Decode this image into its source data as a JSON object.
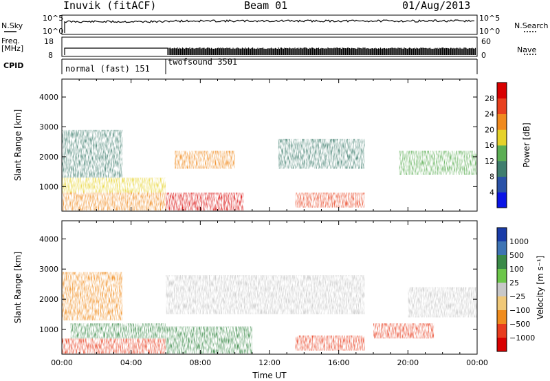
{
  "header": {
    "station": "Inuvik (fitACF)",
    "beam": "Beam 01",
    "date": "01/Aug/2013"
  },
  "top_panels": {
    "nsky": {
      "label": "N.Sky",
      "axis_ticks": [
        "10^5",
        "10^0"
      ]
    },
    "nsearch": {
      "label": "N.Search",
      "axis_ticks": [
        "10^5",
        "10^0"
      ]
    },
    "freq": {
      "label_line1": "Freq.",
      "label_line2": "[MHz]",
      "axis_ticks": [
        "18",
        "8"
      ]
    },
    "nave": {
      "label": "Nave",
      "axis_ticks": [
        "60",
        "0"
      ]
    },
    "cpid": {
      "label": "CPID",
      "segments": [
        {
          "name": "normal (fast) 151",
          "start_hour": 0,
          "end_hour": 6
        },
        {
          "name": "twofsound 3501",
          "start_hour": 6,
          "end_hour": 24
        }
      ]
    }
  },
  "chart_data": [
    {
      "type": "heatmap",
      "title": "",
      "xlabel": "",
      "ylabel": "Slant Range [km]",
      "xlim": [
        0,
        24
      ],
      "ylim": [
        180,
        4600
      ],
      "yticks": [
        1000,
        2000,
        3000,
        4000
      ],
      "colorbar": {
        "label": "Power [dB]",
        "ticks": [
          4,
          8,
          12,
          16,
          20,
          24,
          28
        ],
        "range": [
          0,
          32
        ],
        "colors": [
          "#0a14e6",
          "#2a52a8",
          "#3f7e6e",
          "#5cae54",
          "#e6d22a",
          "#f08a1e",
          "#e8401e",
          "#d80000"
        ]
      },
      "features": [
        {
          "start_hour": 0.0,
          "end_hour": 6.0,
          "range_min_km": 200,
          "range_max_km": 800,
          "power_db": 22
        },
        {
          "start_hour": 0.0,
          "end_hour": 6.0,
          "range_min_km": 800,
          "range_max_km": 1300,
          "power_db": 18
        },
        {
          "start_hour": 0.0,
          "end_hour": 3.5,
          "range_min_km": 1300,
          "range_max_km": 2900,
          "power_db": 10
        },
        {
          "start_hour": 6.0,
          "end_hour": 10.5,
          "range_min_km": 200,
          "range_max_km": 800,
          "power_db": 28
        },
        {
          "start_hour": 6.5,
          "end_hour": 10.0,
          "range_min_km": 1600,
          "range_max_km": 2200,
          "power_db": 20
        },
        {
          "start_hour": 13.5,
          "end_hour": 17.5,
          "range_min_km": 300,
          "range_max_km": 800,
          "power_db": 24
        },
        {
          "start_hour": 12.5,
          "end_hour": 17.5,
          "range_min_km": 1600,
          "range_max_km": 2600,
          "power_db": 8
        },
        {
          "start_hour": 19.5,
          "end_hour": 24.0,
          "range_min_km": 1400,
          "range_max_km": 2200,
          "power_db": 12
        }
      ]
    },
    {
      "type": "heatmap",
      "title": "",
      "xlabel": "Time UT",
      "ylabel": "Slant Range [km]",
      "xlim": [
        0,
        24
      ],
      "ylim": [
        180,
        4600
      ],
      "xticks": [
        "00:00",
        "04:00",
        "08:00",
        "12:00",
        "16:00",
        "20:00",
        "00:00"
      ],
      "yticks": [
        1000,
        2000,
        3000,
        4000
      ],
      "colorbar": {
        "label": "Velocity [m s⁻¹]",
        "ticks": [
          "1000",
          "500",
          "100",
          "25",
          "−25",
          "−100",
          "−500",
          "−1000"
        ],
        "colors": [
          "#1a3ca8",
          "#3e74b4",
          "#3a8a48",
          "#6cc64a",
          "#c8c8c8",
          "#f0c878",
          "#f08c1e",
          "#e83c1e",
          "#d80000"
        ]
      },
      "features": [
        {
          "start_hour": 0.0,
          "end_hour": 6.0,
          "range_min_km": 200,
          "range_max_km": 700,
          "velocity": -300
        },
        {
          "start_hour": 0.5,
          "end_hour": 6.0,
          "range_min_km": 700,
          "range_max_km": 1200,
          "velocity": 200
        },
        {
          "start_hour": 0.0,
          "end_hour": 3.5,
          "range_min_km": 1300,
          "range_max_km": 2900,
          "velocity": -100
        },
        {
          "start_hour": 6.0,
          "end_hour": 11.0,
          "range_min_km": 200,
          "range_max_km": 1100,
          "velocity": 150
        },
        {
          "start_hour": 6.0,
          "end_hour": 17.5,
          "range_min_km": 1500,
          "range_max_km": 2800,
          "velocity": 0
        },
        {
          "start_hour": 13.5,
          "end_hour": 17.5,
          "range_min_km": 300,
          "range_max_km": 800,
          "velocity": -300
        },
        {
          "start_hour": 18.0,
          "end_hour": 21.5,
          "range_min_km": 700,
          "range_max_km": 1200,
          "velocity": -300
        },
        {
          "start_hour": 20.0,
          "end_hour": 24.0,
          "range_min_km": 1400,
          "range_max_km": 2400,
          "velocity": 0
        }
      ]
    }
  ]
}
